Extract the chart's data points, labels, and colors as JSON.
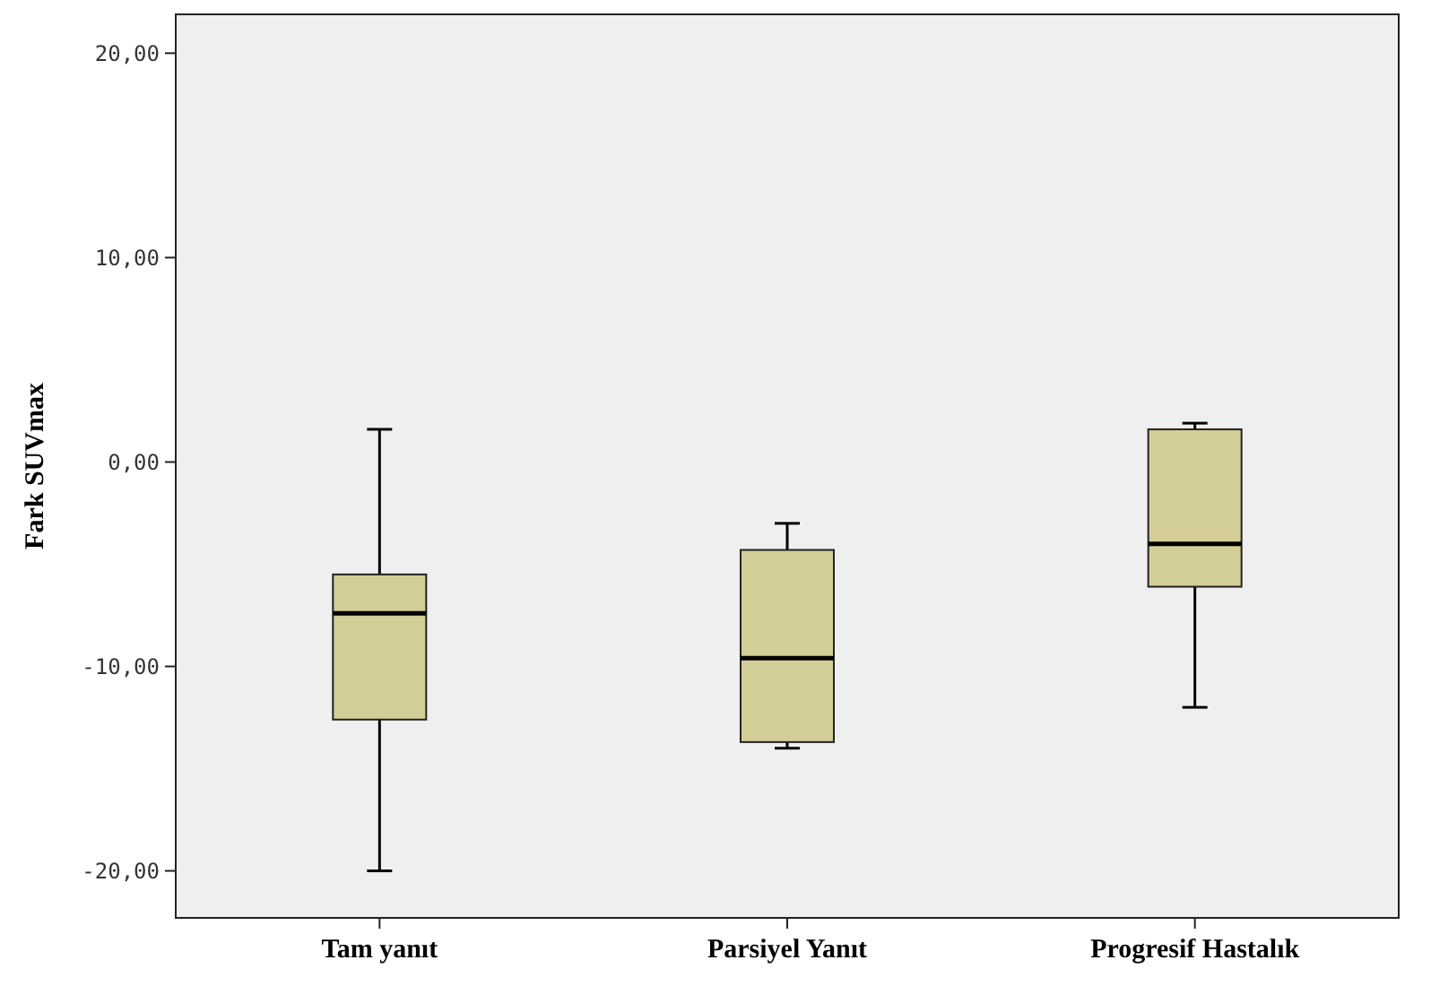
{
  "chart_data": {
    "type": "box",
    "ylabel": "Fark SUVmax",
    "categories": [
      "Tam yanıt",
      "Parsiyel Yanıt",
      "Progresif Hastalık"
    ],
    "color": "#d3cd97",
    "boxes": [
      {
        "low": -20,
        "q1": -12.6,
        "median": -7.4,
        "q3": -5.5,
        "high": 1.6
      },
      {
        "low": -14,
        "q1": -13.7,
        "median": -9.6,
        "q3": -4.3,
        "high": -3
      },
      {
        "low": -12,
        "q1": -6.1,
        "median": -4,
        "q3": 1.6,
        "high": 1.9
      }
    ],
    "ylim": [
      -22.3,
      21.9
    ],
    "yticks": [
      {
        "value": -20,
        "label": "-20,00"
      },
      {
        "value": -10,
        "label": "-10,00"
      },
      {
        "value": 0,
        "label": "0,00"
      },
      {
        "value": 10,
        "label": "10,00"
      },
      {
        "value": 20,
        "label": "20,00"
      }
    ]
  }
}
